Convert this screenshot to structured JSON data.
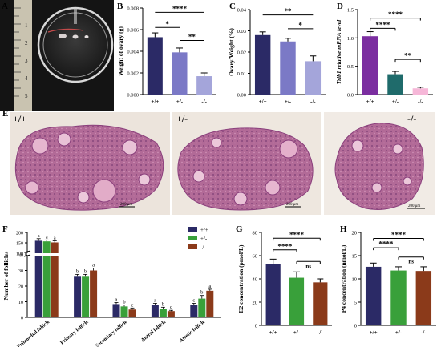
{
  "panels": {
    "A": {
      "letter": "A",
      "ruler_ticks": [
        "1",
        "2",
        "3",
        "4",
        "5"
      ]
    },
    "E": {
      "letter": "E",
      "images": [
        {
          "genotype": "+/+",
          "scale_bar": "200 μm"
        },
        {
          "genotype": "+/-",
          "scale_bar": "200 μm"
        },
        {
          "genotype": "-/-",
          "scale_bar": "200 μm"
        }
      ]
    }
  },
  "colors": {
    "wt": "#2b2a66",
    "het": "#7b79c6",
    "ko": "#a4a5da",
    "d_wt": "#7b2ea0",
    "d_het": "#1f6b6b",
    "d_ko": "#f6b7d8",
    "green": "#39a03a",
    "brown": "#8b3a1a",
    "sig_line": "#000000",
    "tissue": "#b9628f",
    "tissue_bg": "#e9dfd7"
  },
  "chart_data": [
    {
      "id": "B",
      "letter": "B",
      "type": "bar",
      "categories": [
        "+/+",
        "+/-",
        "-/-"
      ],
      "values": [
        0.0053,
        0.0039,
        0.0017
      ],
      "errors": [
        0.0004,
        0.0004,
        0.0003
      ],
      "ylabel": "Weight of ovary (g)",
      "ylim": [
        0,
        0.008
      ],
      "yticks": [
        "0.000",
        "0.002",
        "0.004",
        "0.006",
        "0.008"
      ],
      "ytick_values": [
        0,
        0.002,
        0.004,
        0.006,
        0.008
      ],
      "significance": [
        {
          "from": 0,
          "to": 2,
          "label": "****",
          "y": 0.0076
        },
        {
          "from": 0,
          "to": 1,
          "label": "*",
          "y": 0.0062
        },
        {
          "from": 1,
          "to": 2,
          "label": "**",
          "y": 0.005
        }
      ]
    },
    {
      "id": "C",
      "letter": "C",
      "type": "bar",
      "categories": [
        "+/+",
        "+/-",
        "-/-"
      ],
      "values": [
        0.028,
        0.025,
        0.0157
      ],
      "errors": [
        0.0015,
        0.0015,
        0.0025
      ],
      "ylabel": "Ovary/Weight (%)",
      "ylim": [
        0,
        0.04
      ],
      "yticks": [
        "0.00",
        "0.01",
        "0.02",
        "0.03",
        "0.04"
      ],
      "ytick_values": [
        0,
        0.01,
        0.02,
        0.03,
        0.04
      ],
      "significance": [
        {
          "from": 0,
          "to": 2,
          "label": "**",
          "y": 0.0375
        },
        {
          "from": 1,
          "to": 2,
          "label": "*",
          "y": 0.031
        }
      ]
    },
    {
      "id": "D",
      "letter": "D",
      "type": "bar",
      "categories": [
        "+/+",
        "+/-",
        "-/-"
      ],
      "values": [
        1.03,
        0.36,
        0.11
      ],
      "errors": [
        0.08,
        0.05,
        0.02
      ],
      "ylabel": "Trib1 relative mRNA level",
      "ylim": [
        0,
        1.5
      ],
      "yticks": [
        "0.0",
        "0.5",
        "1.0",
        "1.5"
      ],
      "ytick_values": [
        0,
        0.5,
        1.0,
        1.5
      ],
      "significance": [
        {
          "from": 0,
          "to": 2,
          "label": "****",
          "y": 1.35
        },
        {
          "from": 0,
          "to": 1,
          "label": "****",
          "y": 1.17
        },
        {
          "from": 1,
          "to": 2,
          "label": "**",
          "y": 0.62
        }
      ]
    },
    {
      "id": "F",
      "letter": "F",
      "type": "bar",
      "categories": [
        "Primordial follicle",
        "Primary follicle",
        "Secondary follicle",
        "Antral follicle",
        "Atretic follicle"
      ],
      "series": [
        {
          "name": "+/+",
          "values": [
            160,
            26,
            8.5,
            8,
            8
          ],
          "errors": [
            10,
            1.5,
            1,
            1,
            1
          ],
          "letters": [
            "a",
            "b",
            "a",
            "a",
            "c"
          ]
        },
        {
          "name": "+/-",
          "values": [
            157,
            26,
            7,
            5.5,
            12
          ],
          "errors": [
            7,
            1.5,
            1,
            1,
            2
          ],
          "letters": [
            "a",
            "b",
            "b",
            "b",
            "b"
          ]
        },
        {
          "name": "-/-",
          "values": [
            152,
            30,
            5,
            4,
            17
          ],
          "errors": [
            8,
            1.5,
            1,
            0.5,
            1
          ],
          "letters": [
            "a",
            "a",
            "c",
            "c",
            "a"
          ]
        }
      ],
      "ylabel": "Number of follicles",
      "yticks": [
        "0",
        "10",
        "20",
        "30",
        "40",
        "100",
        "150",
        "200"
      ],
      "ytick_values": [
        0,
        10,
        20,
        30,
        40,
        100,
        150,
        200
      ],
      "broken_axis": [
        40,
        100
      ],
      "legend_position": "top-right"
    },
    {
      "id": "G",
      "letter": "G",
      "type": "bar",
      "categories": [
        "+/+",
        "+/-",
        "-/-"
      ],
      "values": [
        53,
        41,
        37
      ],
      "errors": [
        4,
        5,
        3
      ],
      "ylabel": "E2 concentration (pmol/L)",
      "ylim": [
        0,
        80
      ],
      "yticks": [
        "0",
        "20",
        "40",
        "60",
        "80"
      ],
      "ytick_values": [
        0,
        20,
        40,
        60,
        80
      ],
      "significance": [
        {
          "from": 0,
          "to": 2,
          "label": "****",
          "y": 75
        },
        {
          "from": 0,
          "to": 1,
          "label": "****",
          "y": 65
        },
        {
          "from": 1,
          "to": 2,
          "label": "ns",
          "y": 55
        }
      ]
    },
    {
      "id": "H",
      "letter": "H",
      "type": "bar",
      "categories": [
        "+/+",
        "+/-",
        "-/-"
      ],
      "values": [
        12.6,
        11.8,
        11.7
      ],
      "errors": [
        0.8,
        0.8,
        0.9
      ],
      "ylabel": "P4 concentration (nmol/L)",
      "ylim": [
        0,
        20
      ],
      "yticks": [
        "0",
        "5",
        "10",
        "15",
        "20"
      ],
      "ytick_values": [
        0,
        5,
        10,
        15,
        20
      ],
      "significance": [
        {
          "from": 0,
          "to": 2,
          "label": "****",
          "y": 18.7
        },
        {
          "from": 0,
          "to": 1,
          "label": "****",
          "y": 16.7
        },
        {
          "from": 1,
          "to": 2,
          "label": "ns",
          "y": 14.7
        }
      ]
    }
  ]
}
